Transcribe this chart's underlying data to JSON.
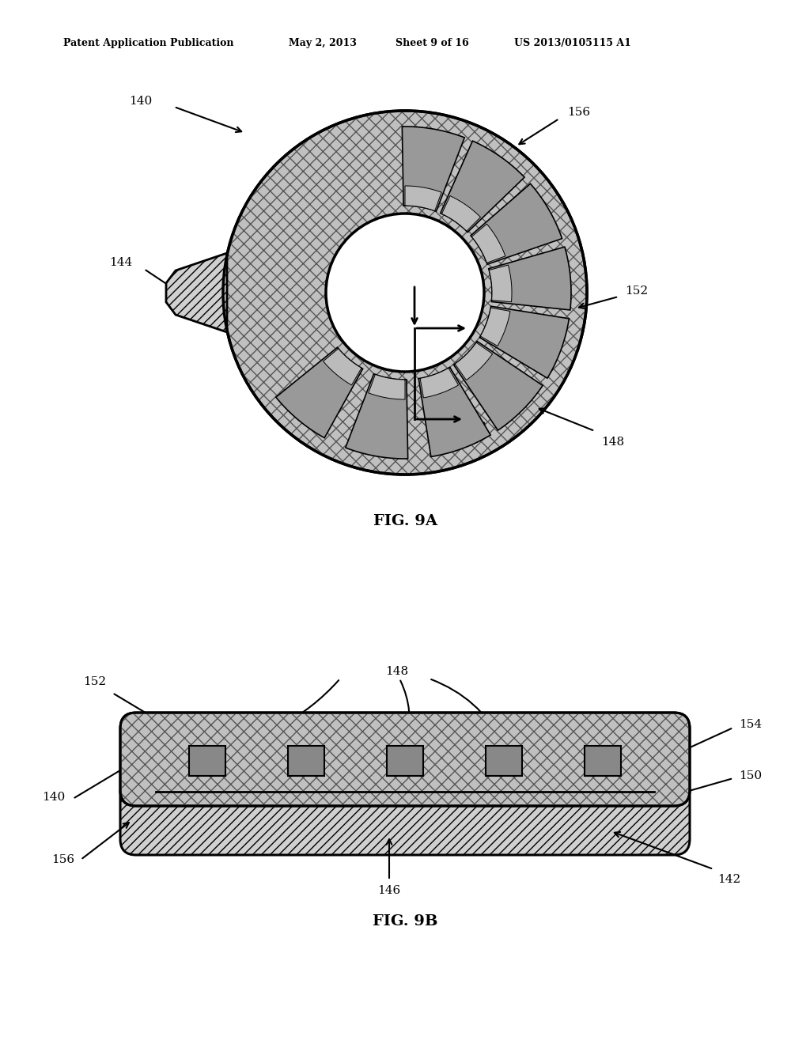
{
  "background_color": "#ffffff",
  "header_text": "Patent Application Publication",
  "header_date": "May 2, 2013",
  "header_sheet": "Sheet 9 of 16",
  "header_patent": "US 2013/0105115 A1",
  "fig9a_label": "FIG. 9A",
  "fig9b_label": "FIG. 9B",
  "black": "#000000",
  "white": "#ffffff",
  "gray_light": "#c8c8c8",
  "gray_mid": "#999999",
  "gray_dark": "#777777",
  "gray_slot": "#a0a0a0",
  "gray_stripe": "#d0d0d0"
}
